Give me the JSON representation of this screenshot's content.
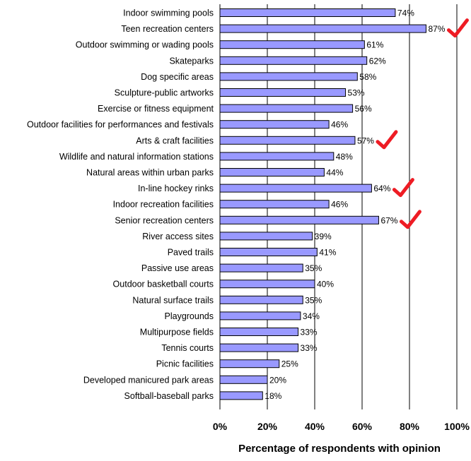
{
  "colors": {
    "bar_fill": "#9999ff",
    "bar_stroke": "#000000",
    "gridline": "#000000",
    "checkmark": "#ee1c24"
  },
  "chart_data": {
    "type": "bar",
    "orientation": "horizontal",
    "categories": [
      "Indoor swimming pools",
      "Teen recreation centers",
      "Outdoor swimming or wading pools",
      "Skateparks",
      "Dog specific areas",
      "Sculpture-public artworks",
      "Exercise or fitness equipment",
      "Outdoor facilities for performances and festivals",
      "Arts & craft facilities",
      "Wildlife and natural information stations",
      "Natural areas within urban parks",
      "In-line hockey rinks",
      "Indoor recreation facilities",
      "Senior recreation centers",
      "River access sites",
      "Paved trails",
      "Passive use areas",
      "Outdoor basketball courts",
      "Natural surface trails",
      "Playgrounds",
      "Multipurpose fields",
      "Tennis courts",
      "Picnic facilities",
      "Developed manicured park areas",
      "Softball-baseball parks"
    ],
    "values": [
      74,
      87,
      61,
      62,
      58,
      53,
      56,
      46,
      57,
      48,
      44,
      64,
      46,
      67,
      39,
      41,
      35,
      40,
      35,
      34,
      33,
      33,
      25,
      20,
      18
    ],
    "value_labels": [
      "74%",
      "87%",
      "61%",
      "62%",
      "58%",
      "53%",
      "56%",
      "46%",
      "57%",
      "48%",
      "44%",
      "64%",
      "46%",
      "67%",
      "39%",
      "41%",
      "35%",
      "40%",
      "35%",
      "34%",
      "33%",
      "33%",
      "25%",
      "20%",
      "18%"
    ],
    "xlim": [
      0,
      100
    ],
    "x_ticks": [
      0,
      20,
      40,
      60,
      80,
      100
    ],
    "x_tick_labels": [
      "0%",
      "20%",
      "40%",
      "60%",
      "80%",
      "100%"
    ],
    "xlabel": "Percentage of respondents with opinion",
    "title": "",
    "grid": "vertical major gridlines",
    "annotations": {
      "type": "checkmark",
      "categories": [
        "Teen recreation centers",
        "Arts & craft facilities",
        "In-line hockey rinks",
        "Senior recreation centers"
      ]
    }
  }
}
